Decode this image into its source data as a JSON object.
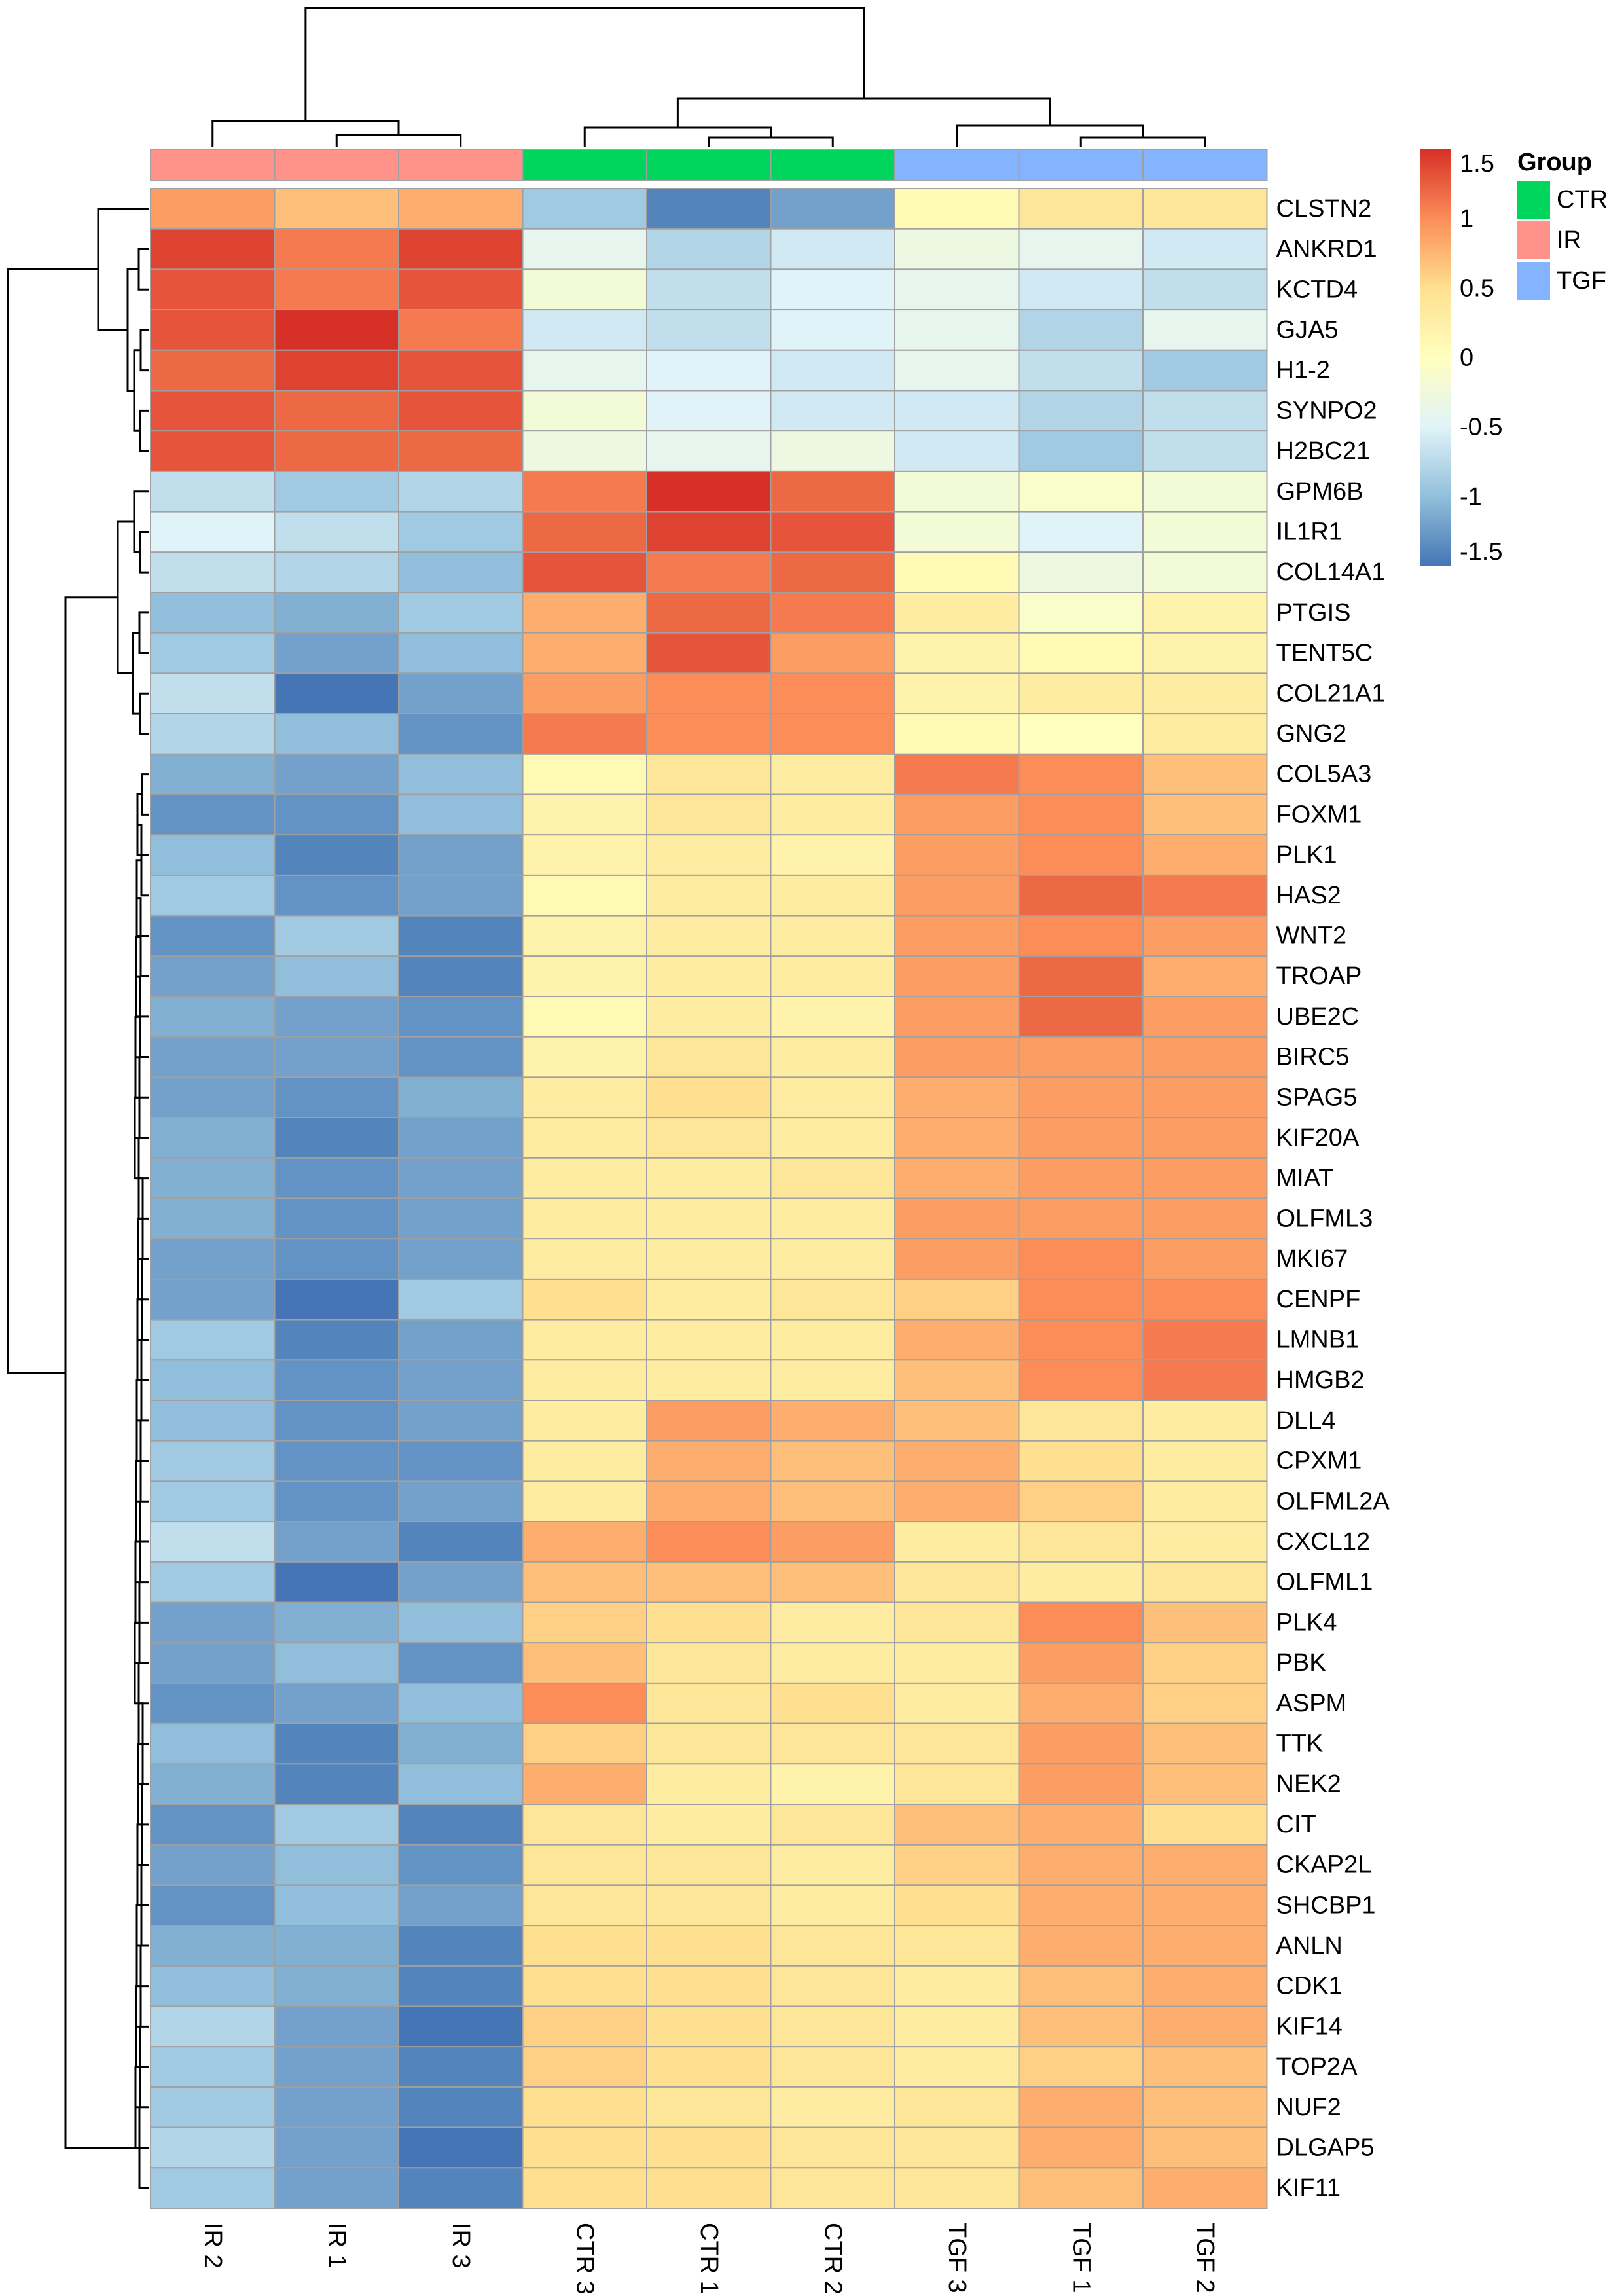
{
  "chart_data": {
    "type": "heatmap",
    "columns": [
      "IR 2",
      "IR 1",
      "IR 3",
      "CTR 3",
      "CTR 1",
      "CTR 2",
      "TGF 3",
      "TGF 1",
      "TGF 2"
    ],
    "column_groups": [
      "IR",
      "IR",
      "IR",
      "CTR",
      "CTR",
      "CTR",
      "TGF",
      "TGF",
      "TGF"
    ],
    "rows": [
      "CLSTN2",
      "ANKRD1",
      "KCTD4",
      "GJA5",
      "H1-2",
      "SYNPO2",
      "H2BC21",
      "GPM6B",
      "IL1R1",
      "COL14A1",
      "PTGIS",
      "TENT5C",
      "COL21A1",
      "GNG2",
      "COL5A3",
      "FOXM1",
      "PLK1",
      "HAS2",
      "WNT2",
      "TROAP",
      "UBE2C",
      "BIRC5",
      "SPAG5",
      "KIF20A",
      "MIAT",
      "OLFML3",
      "MKI67",
      "CENPF",
      "LMNB1",
      "HMGB2",
      "DLL4",
      "CPXM1",
      "OLFML2A",
      "CXCL12",
      "OLFML1",
      "PLK4",
      "PBK",
      "ASPM",
      "TTK",
      "NEK2",
      "CIT",
      "CKAP2L",
      "SHCBP1",
      "ANLN",
      "CDK1",
      "KIF14",
      "TOP2A",
      "NUF2",
      "DLGAP5",
      "KIF11"
    ],
    "values": [
      [
        0.9,
        0.7,
        0.8,
        -0.9,
        -1.4,
        -1.2,
        0.1,
        0.4,
        0.4
      ],
      [
        1.4,
        1.1,
        1.4,
        -0.4,
        -0.8,
        -0.6,
        -0.3,
        -0.4,
        -0.6
      ],
      [
        1.3,
        1.1,
        1.3,
        -0.2,
        -0.7,
        -0.5,
        -0.4,
        -0.6,
        -0.7
      ],
      [
        1.3,
        1.5,
        1.1,
        -0.6,
        -0.7,
        -0.5,
        -0.4,
        -0.8,
        -0.4
      ],
      [
        1.2,
        1.4,
        1.3,
        -0.4,
        -0.5,
        -0.6,
        -0.4,
        -0.7,
        -0.9
      ],
      [
        1.3,
        1.2,
        1.3,
        -0.2,
        -0.5,
        -0.6,
        -0.6,
        -0.8,
        -0.7
      ],
      [
        1.3,
        1.2,
        1.2,
        -0.3,
        -0.4,
        -0.3,
        -0.6,
        -0.9,
        -0.7
      ],
      [
        -0.7,
        -0.9,
        -0.8,
        1.1,
        1.5,
        1.2,
        -0.2,
        -0.1,
        -0.2
      ],
      [
        -0.5,
        -0.7,
        -0.9,
        1.2,
        1.4,
        1.3,
        -0.2,
        -0.5,
        -0.2
      ],
      [
        -0.7,
        -0.8,
        -1.0,
        1.3,
        1.1,
        1.2,
        0.1,
        -0.3,
        -0.2
      ],
      [
        -1.0,
        -1.1,
        -0.9,
        0.8,
        1.2,
        1.1,
        0.3,
        -0.1,
        0.2
      ],
      [
        -0.9,
        -1.2,
        -1.0,
        0.8,
        1.3,
        0.9,
        0.2,
        0.1,
        0.2
      ],
      [
        -0.7,
        -1.5,
        -1.2,
        0.9,
        1.0,
        1.0,
        0.2,
        0.3,
        0.3
      ],
      [
        -0.8,
        -1.0,
        -1.3,
        1.1,
        1.0,
        1.0,
        0.1,
        0.0,
        0.3
      ],
      [
        -1.1,
        -1.2,
        -1.0,
        0.1,
        0.4,
        0.3,
        1.1,
        1.0,
        0.7
      ],
      [
        -1.3,
        -1.3,
        -1.0,
        0.2,
        0.4,
        0.3,
        0.9,
        1.0,
        0.7
      ],
      [
        -1.0,
        -1.4,
        -1.2,
        0.2,
        0.3,
        0.2,
        0.9,
        1.0,
        0.8
      ],
      [
        -0.9,
        -1.3,
        -1.2,
        0.1,
        0.3,
        0.3,
        0.9,
        1.2,
        1.1
      ],
      [
        -1.3,
        -0.9,
        -1.4,
        0.2,
        0.3,
        0.3,
        0.9,
        1.0,
        0.9
      ],
      [
        -1.2,
        -1.0,
        -1.4,
        0.2,
        0.3,
        0.3,
        0.9,
        1.2,
        0.8
      ],
      [
        -1.1,
        -1.2,
        -1.3,
        0.1,
        0.3,
        0.2,
        0.9,
        1.2,
        0.9
      ],
      [
        -1.2,
        -1.2,
        -1.3,
        0.2,
        0.4,
        0.3,
        0.9,
        0.9,
        0.9
      ],
      [
        -1.2,
        -1.3,
        -1.1,
        0.3,
        0.5,
        0.3,
        0.8,
        0.9,
        0.9
      ],
      [
        -1.1,
        -1.4,
        -1.2,
        0.3,
        0.4,
        0.3,
        0.8,
        0.9,
        0.9
      ],
      [
        -1.1,
        -1.3,
        -1.2,
        0.3,
        0.3,
        0.4,
        0.8,
        0.9,
        0.9
      ],
      [
        -1.1,
        -1.3,
        -1.2,
        0.3,
        0.3,
        0.3,
        0.9,
        0.9,
        0.9
      ],
      [
        -1.2,
        -1.3,
        -1.2,
        0.3,
        0.3,
        0.3,
        0.9,
        1.0,
        0.9
      ],
      [
        -1.2,
        -1.5,
        -0.9,
        0.5,
        0.3,
        0.4,
        0.6,
        1.0,
        1.0
      ],
      [
        -0.9,
        -1.4,
        -1.2,
        0.3,
        0.3,
        0.3,
        0.8,
        1.0,
        1.1
      ],
      [
        -1.0,
        -1.3,
        -1.2,
        0.3,
        0.3,
        0.3,
        0.7,
        1.0,
        1.1
      ],
      [
        -1.0,
        -1.3,
        -1.2,
        0.3,
        0.9,
        0.8,
        0.7,
        0.4,
        0.3
      ],
      [
        -0.9,
        -1.3,
        -1.3,
        0.3,
        0.8,
        0.7,
        0.8,
        0.5,
        0.3
      ],
      [
        -0.9,
        -1.3,
        -1.2,
        0.3,
        0.8,
        0.7,
        0.8,
        0.6,
        0.3
      ],
      [
        -0.7,
        -1.2,
        -1.4,
        0.8,
        1.0,
        0.9,
        0.3,
        0.4,
        0.3
      ],
      [
        -0.9,
        -1.5,
        -1.2,
        0.7,
        0.7,
        0.7,
        0.4,
        0.3,
        0.4
      ],
      [
        -1.2,
        -1.1,
        -1.0,
        0.6,
        0.5,
        0.3,
        0.4,
        1.0,
        0.7
      ],
      [
        -1.2,
        -1.0,
        -1.3,
        0.7,
        0.4,
        0.3,
        0.3,
        0.9,
        0.6
      ],
      [
        -1.3,
        -1.2,
        -1.0,
        1.0,
        0.4,
        0.5,
        0.3,
        0.8,
        0.6
      ],
      [
        -1.0,
        -1.4,
        -1.1,
        0.6,
        0.4,
        0.4,
        0.4,
        0.9,
        0.7
      ],
      [
        -1.1,
        -1.4,
        -1.0,
        0.8,
        0.3,
        0.2,
        0.4,
        0.9,
        0.7
      ],
      [
        -1.3,
        -0.9,
        -1.4,
        0.4,
        0.3,
        0.4,
        0.7,
        0.8,
        0.5
      ],
      [
        -1.2,
        -1.0,
        -1.3,
        0.4,
        0.4,
        0.3,
        0.6,
        0.8,
        0.8
      ],
      [
        -1.3,
        -1.0,
        -1.2,
        0.4,
        0.4,
        0.3,
        0.5,
        0.8,
        0.8
      ],
      [
        -1.1,
        -1.1,
        -1.4,
        0.5,
        0.5,
        0.4,
        0.4,
        0.8,
        0.8
      ],
      [
        -1.0,
        -1.1,
        -1.4,
        0.5,
        0.5,
        0.4,
        0.3,
        0.7,
        0.8
      ],
      [
        -0.8,
        -1.2,
        -1.5,
        0.6,
        0.5,
        0.4,
        0.3,
        0.7,
        0.8
      ],
      [
        -0.9,
        -1.2,
        -1.4,
        0.6,
        0.5,
        0.4,
        0.3,
        0.6,
        0.7
      ],
      [
        -0.9,
        -1.2,
        -1.4,
        0.5,
        0.4,
        0.3,
        0.4,
        0.8,
        0.7
      ],
      [
        -0.8,
        -1.2,
        -1.5,
        0.5,
        0.5,
        0.4,
        0.4,
        0.8,
        0.7
      ],
      [
        -0.9,
        -1.2,
        -1.4,
        0.5,
        0.5,
        0.4,
        0.4,
        0.7,
        0.8
      ]
    ],
    "color_scale": {
      "range": [
        -1.5,
        1.5
      ],
      "colors": [
        "#4575B4",
        "#91BFDB",
        "#E0F3F8",
        "#FFFFBF",
        "#FEE090",
        "#FC8D59",
        "#D73027"
      ]
    },
    "legend_ticks": [
      "1.5",
      "1",
      "0.5",
      "0",
      "-0.5",
      "-1",
      "-1.5"
    ],
    "legend_tick_values": [
      1.5,
      1,
      0.5,
      0,
      -0.5,
      -1,
      -1.5
    ],
    "annotation_legend": {
      "title": "Group",
      "items": [
        {
          "label": "CTR",
          "color": "#00D65C"
        },
        {
          "label": "IR",
          "color": "#FF9289"
        },
        {
          "label": "TGF",
          "color": "#84B4FF"
        }
      ]
    },
    "cell_border_color": "#A0A0A0",
    "row_dendrogram": true,
    "column_dendrogram": true,
    "legend_position": "right"
  }
}
